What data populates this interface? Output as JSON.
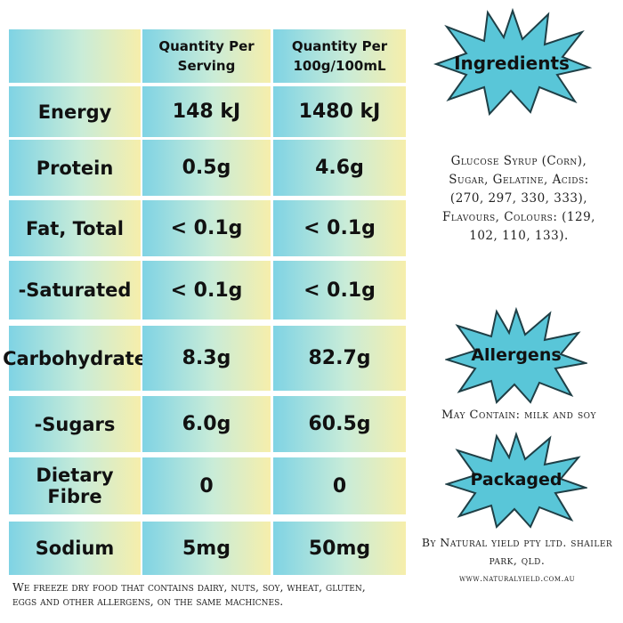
{
  "table": {
    "header": {
      "col1": "",
      "col2_line1": "Quantity Per",
      "col2_line2": "Serving",
      "col3_line1": "Quantity Per",
      "col3_line2": "100g/100mL"
    },
    "rows": [
      {
        "label": "Energy",
        "serving": "148 kJ",
        "per100": "1480 kJ"
      },
      {
        "label": "Protein",
        "serving": "0.5g",
        "per100": "4.6g"
      },
      {
        "label": "Fat, Total",
        "serving": "< 0.1g",
        "per100": "< 0.1g"
      },
      {
        "label": "-Saturated",
        "serving": "< 0.1g",
        "per100": "< 0.1g"
      },
      {
        "label": "Carbohydrate",
        "serving": "8.3g",
        "per100": "82.7g"
      },
      {
        "label": "-Sugars",
        "serving": "6.0g",
        "per100": "60.5g"
      },
      {
        "label": "Dietary Fibre",
        "serving": "0",
        "per100": "0"
      },
      {
        "label": "Sodium",
        "serving": "5mg",
        "per100": "50mg"
      }
    ]
  },
  "ingredients": {
    "title": "Ingredients",
    "line1": "Glucose Syrup (Corn),",
    "line2": "Sugar, Gelatine, Acids:",
    "line3": "(270, 297, 330, 333),",
    "line4": "Flavours, Colours: (129,",
    "line5": "102, 110, 133)."
  },
  "allergens": {
    "title": "Allergens",
    "text": "May Contain: milk and soy"
  },
  "packaged": {
    "title": "Packaged",
    "line1": "By Natural yield pty ltd.  shailer",
    "line2": "park, qld.",
    "website": "www.naturalyield.com.au"
  },
  "footnote": {
    "line1": "We freeze dry food that contains dairy, nuts, soy, wheat, gluten,",
    "line2": "eggs and other allergens, on the same machicnes."
  },
  "colors": {
    "star_fill": "#59c6d8",
    "cell_gradient_start": "#7fd3e4",
    "cell_gradient_end": "#f6eeab"
  }
}
